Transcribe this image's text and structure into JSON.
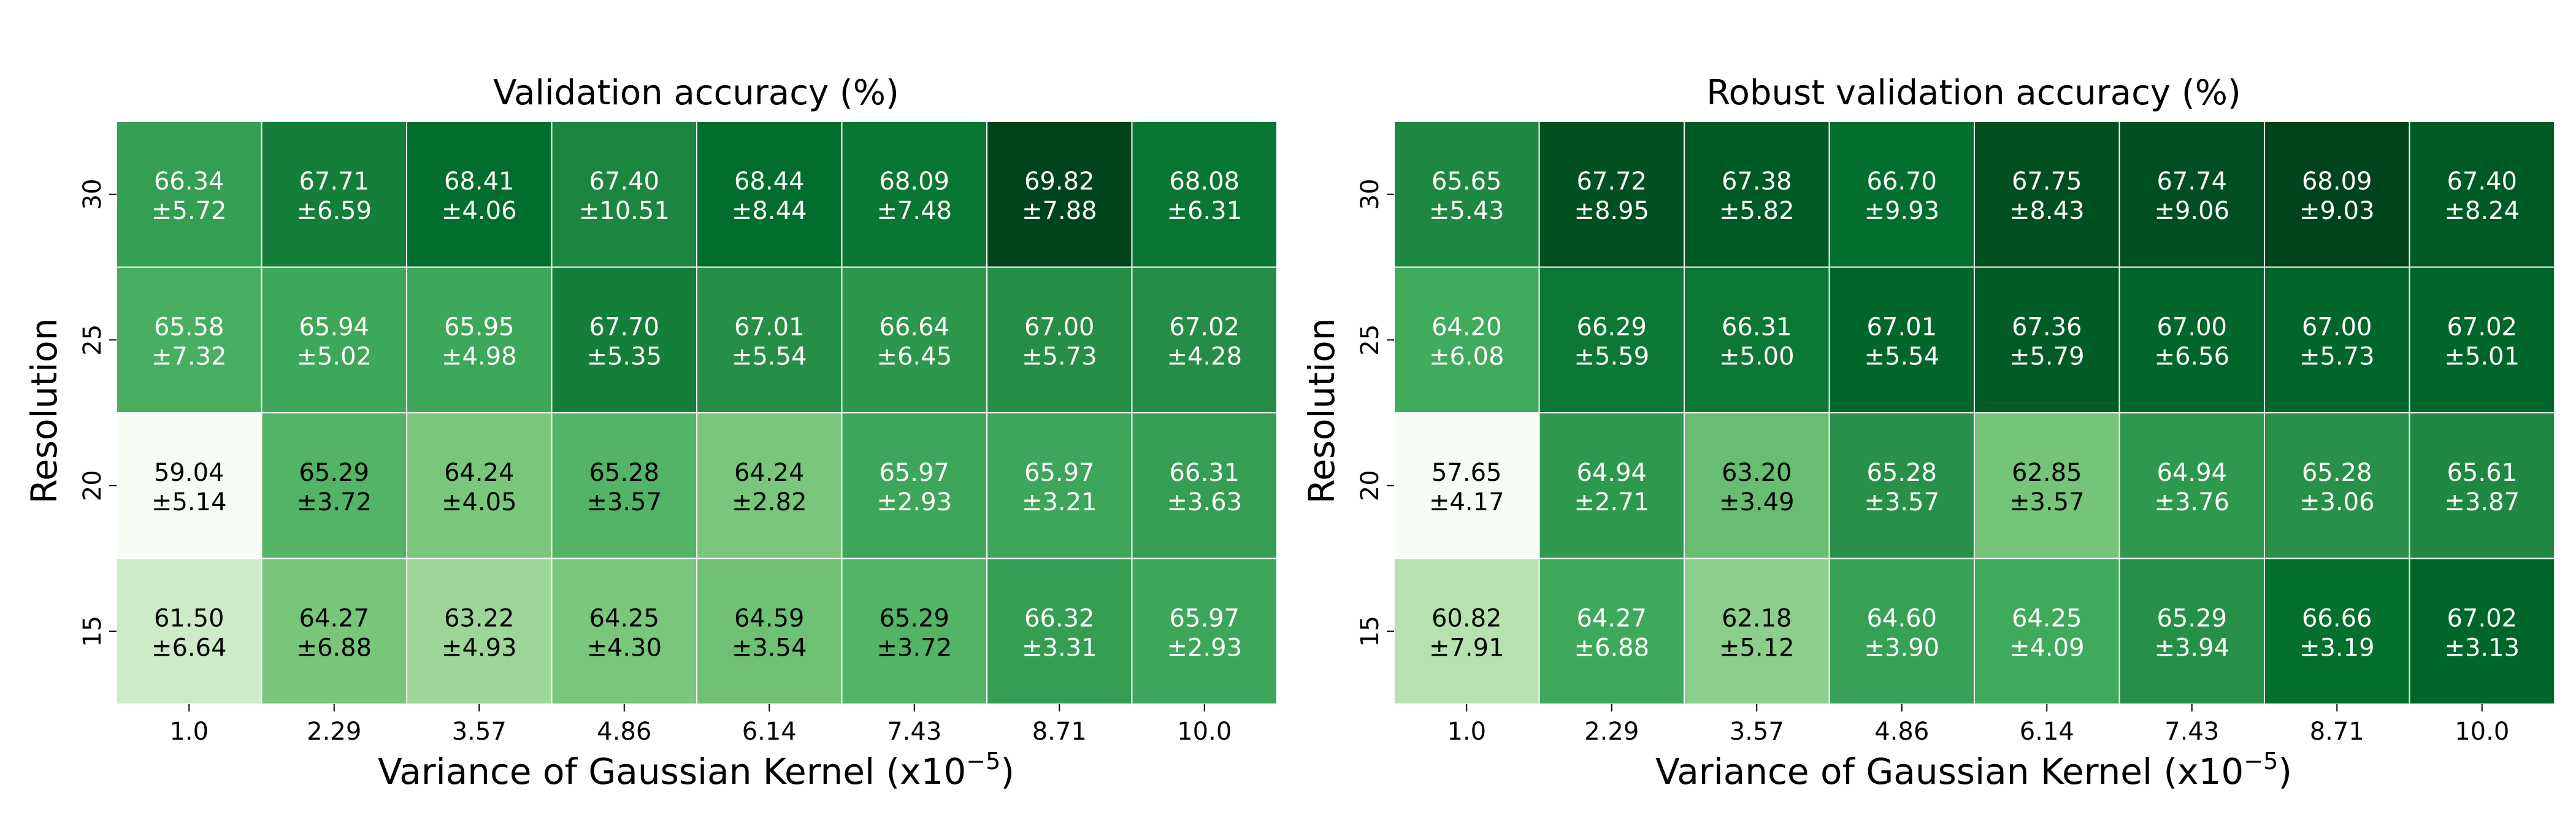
{
  "chart_data": [
    {
      "type": "heatmap",
      "title": "Validation accuracy (%)",
      "xlabel": "Variance of Gaussian Kernel (x10",
      "xlabel_sup": "−5",
      "xlabel_end": ")",
      "ylabel": "Resolution",
      "x_ticks": [
        "1.0",
        "2.29",
        "3.57",
        "4.86",
        "6.14",
        "7.43",
        "8.71",
        "10.0"
      ],
      "y_ticks": [
        "30",
        "25",
        "20",
        "15"
      ],
      "colormap": "Greens",
      "values": [
        [
          66.34,
          67.71,
          68.41,
          67.4,
          68.44,
          68.09,
          69.82,
          68.08
        ],
        [
          65.58,
          65.94,
          65.95,
          67.7,
          67.01,
          66.64,
          67.0,
          67.02
        ],
        [
          59.04,
          65.29,
          64.24,
          65.28,
          64.24,
          65.97,
          65.97,
          66.31
        ],
        [
          61.5,
          64.27,
          63.22,
          64.25,
          64.59,
          65.29,
          66.32,
          65.97
        ]
      ],
      "std": [
        [
          5.72,
          6.59,
          4.06,
          10.51,
          8.44,
          7.48,
          7.88,
          6.31
        ],
        [
          7.32,
          5.02,
          4.98,
          5.35,
          5.54,
          6.45,
          5.73,
          4.28
        ],
        [
          5.14,
          3.72,
          4.05,
          3.57,
          2.82,
          2.93,
          3.21,
          3.63
        ],
        [
          6.64,
          6.88,
          4.93,
          4.3,
          3.54,
          3.72,
          3.31,
          2.93
        ]
      ]
    },
    {
      "type": "heatmap",
      "title": "Robust validation accuracy (%)",
      "xlabel": "Variance of Gaussian Kernel (x10",
      "xlabel_sup": "−5",
      "xlabel_end": ")",
      "ylabel": "Resolution",
      "x_ticks": [
        "1.0",
        "2.29",
        "3.57",
        "4.86",
        "6.14",
        "7.43",
        "8.71",
        "10.0"
      ],
      "y_ticks": [
        "30",
        "25",
        "20",
        "15"
      ],
      "colormap": "Greens",
      "values": [
        [
          65.65,
          67.72,
          67.38,
          66.7,
          67.75,
          67.74,
          68.09,
          67.4
        ],
        [
          64.2,
          66.29,
          66.31,
          67.01,
          67.36,
          67.0,
          67.0,
          67.02
        ],
        [
          57.65,
          64.94,
          63.2,
          65.28,
          62.85,
          64.94,
          65.28,
          65.61
        ],
        [
          60.82,
          64.27,
          62.18,
          64.6,
          64.25,
          65.29,
          66.66,
          67.02
        ]
      ],
      "std": [
        [
          5.43,
          8.95,
          5.82,
          9.93,
          8.43,
          9.06,
          9.03,
          8.24
        ],
        [
          6.08,
          5.59,
          5.0,
          5.54,
          5.79,
          6.56,
          5.73,
          5.01
        ],
        [
          4.17,
          2.71,
          3.49,
          3.57,
          3.57,
          3.76,
          3.06,
          3.87
        ],
        [
          7.91,
          6.88,
          5.12,
          3.9,
          4.09,
          3.94,
          3.19,
          3.13
        ]
      ]
    }
  ]
}
